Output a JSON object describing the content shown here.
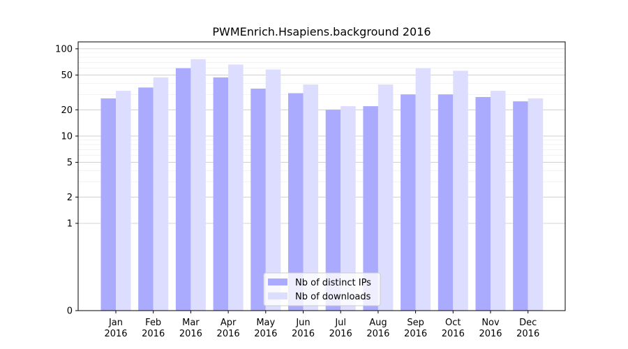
{
  "chart_data": {
    "type": "bar",
    "title": "PWMEnrich.Hsapiens.background 2016",
    "xlabel": "",
    "ylabel": "",
    "yscale": "symlog",
    "ylim": [
      0,
      120
    ],
    "yticks": [
      0,
      1,
      2,
      5,
      10,
      20,
      50,
      100
    ],
    "grid": true,
    "legend_position": "bottom-center",
    "categories": [
      [
        "Jan",
        "2016"
      ],
      [
        "Feb",
        "2016"
      ],
      [
        "Mar",
        "2016"
      ],
      [
        "Apr",
        "2016"
      ],
      [
        "May",
        "2016"
      ],
      [
        "Jun",
        "2016"
      ],
      [
        "Jul",
        "2016"
      ],
      [
        "Aug",
        "2016"
      ],
      [
        "Sep",
        "2016"
      ],
      [
        "Oct",
        "2016"
      ],
      [
        "Nov",
        "2016"
      ],
      [
        "Dec",
        "2016"
      ]
    ],
    "series": [
      {
        "name": "Nb of distinct IPs",
        "color": "#aaaaff",
        "values": [
          27,
          36,
          60,
          47,
          35,
          31,
          20,
          22,
          30,
          30,
          28,
          25
        ]
      },
      {
        "name": "Nb of downloads",
        "color": "#ddddff",
        "values": [
          33,
          47,
          76,
          66,
          58,
          39,
          22,
          39,
          60,
          56,
          33,
          27
        ]
      }
    ]
  }
}
